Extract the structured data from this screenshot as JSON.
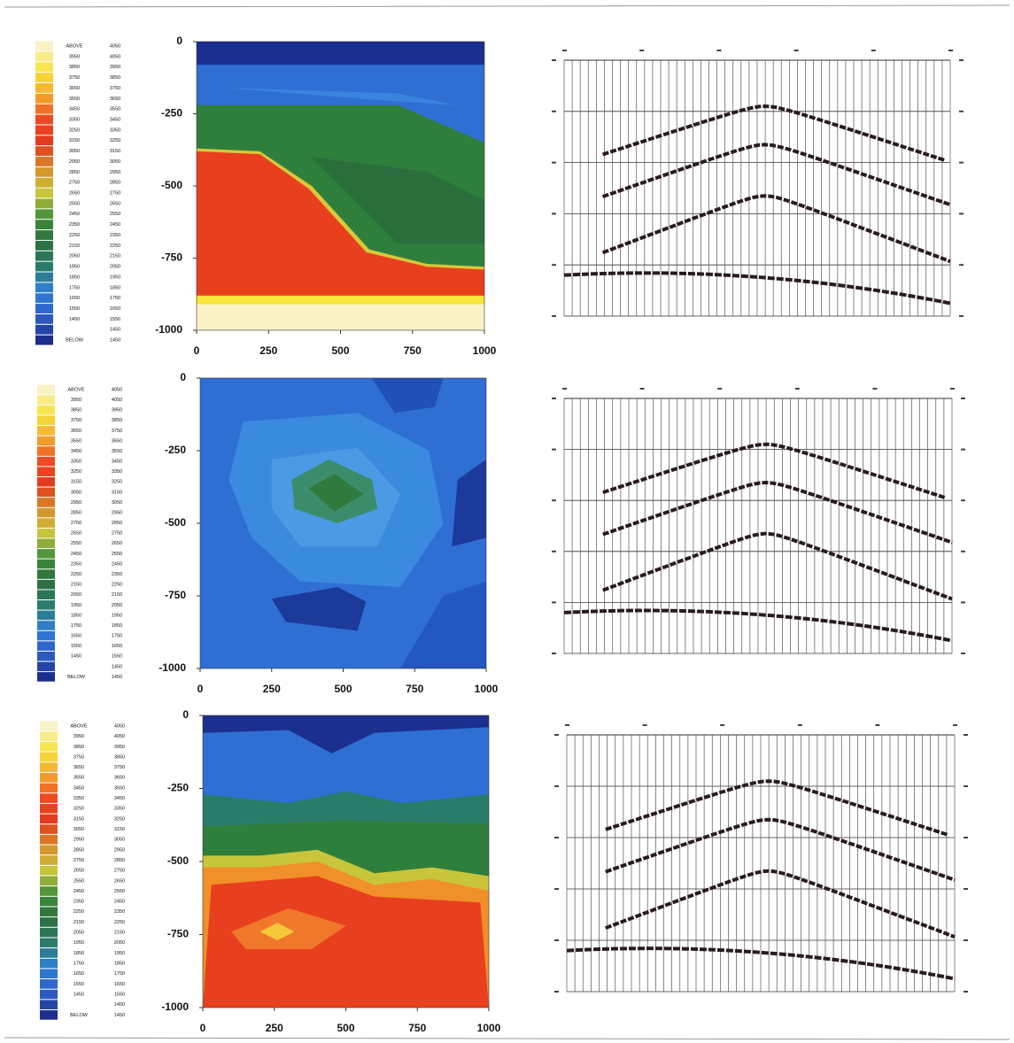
{
  "chart_data": [
    {
      "type": "contour",
      "xlim": [
        0,
        1000
      ],
      "ylim": [
        -1000,
        0
      ],
      "xticks": [
        0,
        250,
        500,
        750,
        1000
      ],
      "yticks": [
        0,
        -250,
        -500,
        -750,
        -1000
      ],
      "colorscale": [
        "#fbf1c6",
        "#f8e43c",
        "#f3a82c",
        "#ec4a22",
        "#e2381c",
        "#d7902a",
        "#c9c53a",
        "#3f8e3a",
        "#2d6f3e",
        "#2a7c6a",
        "#2f7fd6",
        "#2f5fc8",
        "#1b2f8e"
      ],
      "legend": {
        "above": "ABOVE",
        "below": "BELOW",
        "levels": [
          4050,
          3950,
          3850,
          3750,
          3650,
          3550,
          3450,
          3350,
          3250,
          3150,
          3050,
          2950,
          2850,
          2750,
          2650,
          2550,
          2450,
          2350,
          2250,
          2150,
          2050,
          1950,
          1850,
          1750,
          1650,
          1550,
          1450
        ]
      }
    },
    {
      "type": "contour",
      "xlim": [
        0,
        1000
      ],
      "ylim": [
        -1000,
        0
      ],
      "xticks": [
        0,
        250,
        500,
        750,
        1000
      ],
      "yticks": [
        0,
        -250,
        -500,
        -750,
        -1000
      ],
      "colorscale": [
        "#fbf1c6",
        "#f8e43c",
        "#f3a82c",
        "#ec4a22",
        "#e2381c",
        "#d7902a",
        "#c9c53a",
        "#3f8e3a",
        "#2d6f3e",
        "#2a7c6a",
        "#2f7fd6",
        "#2f5fc8",
        "#1b2f8e"
      ],
      "legend": {
        "above": "ABOVE",
        "below": "BELOW",
        "levels": [
          4050,
          3950,
          3850,
          3750,
          3650,
          3550,
          3450,
          3350,
          3250,
          3150,
          3050,
          2950,
          2850,
          2750,
          2650,
          2550,
          2450,
          2350,
          2250,
          2150,
          2050,
          1950,
          1850,
          1750,
          1650,
          1550,
          1450
        ]
      }
    },
    {
      "type": "contour",
      "xlim": [
        0,
        1000
      ],
      "ylim": [
        -1000,
        0
      ],
      "xticks": [
        0,
        250,
        500,
        750,
        1000
      ],
      "yticks": [
        0,
        -250,
        -500,
        -750,
        -1000
      ],
      "colorscale": [
        "#fbf1c6",
        "#f8e43c",
        "#f3a82c",
        "#ec4a22",
        "#e2381c",
        "#d7902a",
        "#c9c53a",
        "#3f8e3a",
        "#2d6f3e",
        "#2a7c6a",
        "#2f7fd6",
        "#2f5fc8",
        "#1b2f8e"
      ],
      "legend": {
        "above": "ABOVE",
        "below": "BELOW",
        "levels": [
          4050,
          3950,
          3850,
          3750,
          3650,
          3550,
          3450,
          3350,
          3250,
          3150,
          3050,
          2950,
          2850,
          2750,
          2650,
          2550,
          2450,
          2350,
          2250,
          2150,
          2050,
          1950,
          1850,
          1750,
          1650,
          1550,
          1450
        ]
      }
    }
  ]
}
